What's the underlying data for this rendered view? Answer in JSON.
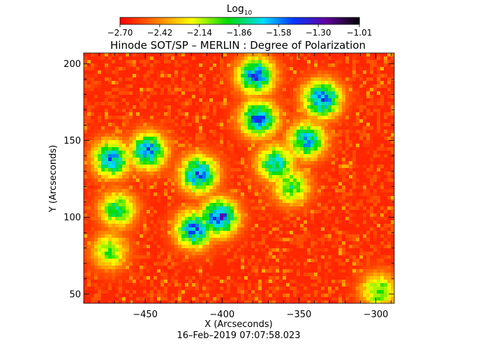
{
  "chart_data": {
    "type": "heatmap",
    "title": "Hinode SOT/SP – MERLIN : Degree of Polarization",
    "xlabel": "X (Arcseconds)",
    "ylabel": "Y (Arcseconds)",
    "xlim": [
      -490,
      -288
    ],
    "ylim": [
      44,
      207
    ],
    "x_ticks": [
      -450,
      -400,
      -350,
      -300
    ],
    "x_tick_labels": [
      "−450",
      "−400",
      "−350",
      "−300"
    ],
    "y_ticks": [
      50,
      100,
      150,
      200
    ],
    "y_tick_labels": [
      "50",
      "100",
      "150",
      "200"
    ],
    "colorbar": {
      "label": "Log",
      "label_subscript": "10",
      "range": [
        -2.7,
        -1.01
      ],
      "ticks": [
        -2.7,
        -2.42,
        -2.14,
        -1.86,
        -1.58,
        -1.3,
        -1.01
      ],
      "tick_labels": [
        "−2.70",
        "−2.42",
        "−2.14",
        "−1.86",
        "−1.58",
        "−1.30",
        "−1.01"
      ],
      "colormap": "rainbow (red → yellow → green → cyan → blue → purple → black)"
    },
    "timestamp": "16–Feb–2019 07:07:58.023",
    "background_level": -2.62,
    "high_polarization_regions": [
      {
        "x": -378,
        "y": 192,
        "peak": -1.42
      },
      {
        "x": -335,
        "y": 177,
        "peak": -1.38
      },
      {
        "x": -376,
        "y": 164,
        "peak": -1.45
      },
      {
        "x": -472,
        "y": 138,
        "peak": -1.5
      },
      {
        "x": -448,
        "y": 143,
        "peak": -1.48
      },
      {
        "x": -415,
        "y": 128,
        "peak": -1.4
      },
      {
        "x": -402,
        "y": 100,
        "peak": -1.3
      },
      {
        "x": -418,
        "y": 92,
        "peak": -1.42
      },
      {
        "x": -365,
        "y": 135,
        "peak": -1.6
      },
      {
        "x": -345,
        "y": 150,
        "peak": -1.55
      },
      {
        "x": -468,
        "y": 105,
        "peak": -1.8
      },
      {
        "x": -473,
        "y": 78,
        "peak": -1.95
      },
      {
        "x": -355,
        "y": 120,
        "peak": -1.85
      },
      {
        "x": -298,
        "y": 52,
        "peak": -1.9
      }
    ]
  }
}
